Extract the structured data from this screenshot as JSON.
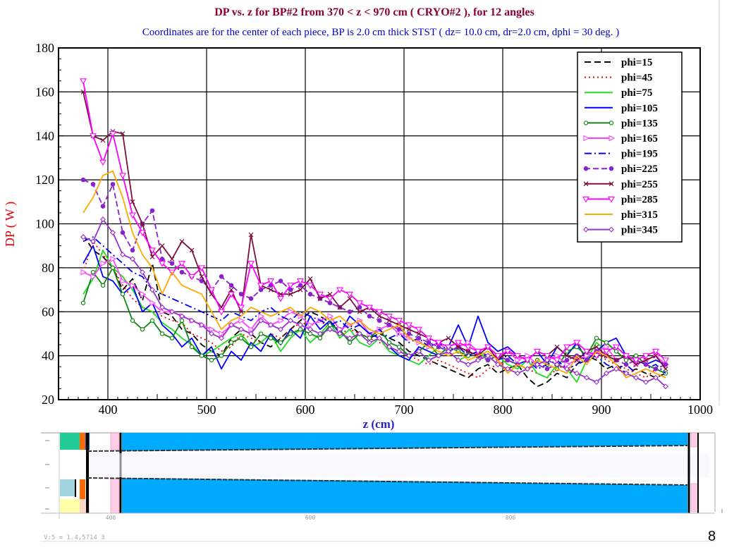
{
  "chart_data": {
    "type": "line",
    "title": "DP vs. z   for  BP#2  from 370 < z < 970 cm ( CRYO#2 ), for 12 angles",
    "subtitle": "Coordinates are for the center of each piece, BP is 2.0 cm thick STST  ( dz= 10.0 cm, dr=2.0 cm, dphi = 30 deg. )",
    "xlabel": "z (cm)",
    "ylabel": "DP ( W )",
    "xlim": [
      350,
      1000
    ],
    "ylim": [
      20,
      180
    ],
    "xticks": [
      "400",
      "500",
      "600",
      "700",
      "800",
      "900",
      "1000"
    ],
    "yticks": [
      "20",
      "40",
      "60",
      "80",
      "100",
      "120",
      "140",
      "160",
      "180"
    ],
    "grid": true,
    "legend_position": "top-right",
    "x": [
      375,
      385,
      395,
      405,
      415,
      425,
      435,
      445,
      455,
      465,
      475,
      485,
      495,
      505,
      515,
      525,
      535,
      545,
      555,
      565,
      575,
      585,
      595,
      605,
      615,
      625,
      635,
      645,
      655,
      665,
      675,
      685,
      695,
      705,
      715,
      725,
      735,
      745,
      755,
      765,
      775,
      785,
      795,
      805,
      815,
      825,
      835,
      845,
      855,
      865,
      875,
      885,
      895,
      905,
      915,
      925,
      935,
      945,
      955,
      965
    ],
    "series": [
      {
        "name": "phi=15",
        "color": "#000000",
        "dash": "9,5",
        "marker": "none",
        "values": [
          95,
          88,
          85,
          80,
          70,
          75,
          65,
          82,
          60,
          58,
          52,
          50,
          45,
          42,
          40,
          48,
          52,
          50,
          46,
          44,
          48,
          52,
          56,
          60,
          58,
          55,
          52,
          54,
          50,
          48,
          50,
          48,
          46,
          42,
          40,
          38,
          36,
          34,
          32,
          30,
          34,
          36,
          32,
          34,
          36,
          30,
          26,
          28,
          32,
          30,
          36,
          40,
          38,
          34,
          36,
          32,
          34,
          32,
          30,
          32
        ]
      },
      {
        "name": "phi=45",
        "color": "#ff0000",
        "dash": "2,4",
        "marker": "none",
        "values": [
          78,
          92,
          86,
          80,
          72,
          66,
          62,
          60,
          58,
          56,
          55,
          50,
          48,
          46,
          42,
          44,
          50,
          48,
          46,
          50,
          48,
          52,
          55,
          54,
          56,
          52,
          50,
          52,
          50,
          48,
          46,
          44,
          42,
          40,
          38,
          36,
          38,
          36,
          34,
          32,
          30,
          34,
          36,
          38,
          36,
          34,
          32,
          30,
          34,
          36,
          38,
          40,
          42,
          38,
          36,
          34,
          32,
          30,
          34,
          36
        ]
      },
      {
        "name": "phi=75",
        "color": "#22dd22",
        "dash": "",
        "marker": "none",
        "values": [
          68,
          75,
          88,
          80,
          76,
          70,
          62,
          60,
          55,
          52,
          48,
          45,
          40,
          42,
          45,
          48,
          50,
          44,
          46,
          50,
          42,
          48,
          52,
          46,
          50,
          55,
          48,
          52,
          46,
          44,
          48,
          42,
          40,
          38,
          36,
          40,
          44,
          42,
          38,
          40,
          42,
          38,
          40,
          36,
          34,
          38,
          32,
          30,
          36,
          34,
          28,
          38,
          46,
          42,
          44,
          40,
          38,
          36,
          34,
          32
        ]
      },
      {
        "name": "phi=105",
        "color": "#0000ff",
        "dash": "",
        "marker": "none",
        "values": [
          82,
          90,
          76,
          74,
          68,
          72,
          60,
          64,
          54,
          50,
          44,
          48,
          40,
          44,
          34,
          42,
          38,
          46,
          42,
          50,
          45,
          52,
          48,
          58,
          52,
          56,
          50,
          58,
          54,
          50,
          48,
          44,
          40,
          38,
          44,
          42,
          40,
          44,
          54,
          44,
          58,
          46,
          42,
          44,
          40,
          38,
          42,
          36,
          44,
          40,
          46,
          38,
          42,
          46,
          48,
          40,
          38,
          36,
          38,
          36
        ]
      },
      {
        "name": "phi=135",
        "color": "#118811",
        "dash": "",
        "marker": "circle-open",
        "values": [
          64,
          78,
          72,
          80,
          68,
          56,
          52,
          56,
          50,
          48,
          56,
          44,
          40,
          38,
          40,
          46,
          48,
          44,
          50,
          48,
          46,
          50,
          52,
          50,
          48,
          54,
          52,
          46,
          50,
          48,
          52,
          46,
          44,
          40,
          42,
          46,
          40,
          44,
          42,
          40,
          42,
          44,
          40,
          38,
          36,
          34,
          38,
          36,
          34,
          42,
          44,
          40,
          48,
          46,
          42,
          38,
          40,
          36,
          34,
          32
        ]
      },
      {
        "name": "phi=165",
        "color": "#ff44ff",
        "dash": "",
        "marker": "triangle-right",
        "values": [
          78,
          76,
          82,
          84,
          74,
          72,
          68,
          64,
          60,
          60,
          58,
          56,
          54,
          52,
          50,
          54,
          56,
          52,
          58,
          54,
          56,
          60,
          58,
          54,
          56,
          58,
          52,
          54,
          56,
          50,
          52,
          54,
          50,
          48,
          46,
          44,
          46,
          42,
          44,
          46,
          42,
          44,
          40,
          42,
          38,
          40,
          36,
          38,
          40,
          36,
          38,
          40,
          42,
          44,
          38,
          40,
          36,
          38,
          40,
          36
        ]
      },
      {
        "name": "phi=195",
        "color": "#0000ee",
        "dash": "10,4,2,4",
        "marker": "none",
        "values": [
          92,
          94,
          90,
          86,
          82,
          78,
          76,
          70,
          68,
          66,
          64,
          62,
          60,
          58,
          56,
          60,
          58,
          56,
          60,
          62,
          58,
          56,
          60,
          58,
          56,
          54,
          56,
          52,
          54,
          50,
          52,
          48,
          50,
          46,
          48,
          44,
          46,
          42,
          44,
          40,
          42,
          40,
          38,
          40,
          36,
          38,
          34,
          36,
          38,
          34,
          36,
          38,
          40,
          36,
          34,
          36,
          32,
          34,
          36,
          32
        ]
      },
      {
        "name": "phi=225",
        "color": "#8822cc",
        "dash": "8,4",
        "marker": "circle-filled",
        "values": [
          120,
          118,
          108,
          118,
          96,
          88,
          100,
          106,
          84,
          82,
          78,
          76,
          74,
          70,
          76,
          72,
          68,
          66,
          70,
          72,
          74,
          70,
          72,
          68,
          66,
          64,
          62,
          60,
          62,
          58,
          56,
          54,
          52,
          50,
          48,
          46,
          44,
          42,
          44,
          42,
          40,
          38,
          40,
          38,
          36,
          38,
          36,
          34,
          36,
          38,
          40,
          38,
          42,
          40,
          38,
          36,
          38,
          36,
          34,
          36
        ]
      },
      {
        "name": "phi=255",
        "color": "#7a1040",
        "dash": "",
        "marker": "x",
        "values": [
          160,
          140,
          138,
          142,
          141,
          110,
          100,
          85,
          90,
          84,
          92,
          88,
          76,
          68,
          62,
          70,
          60,
          95,
          72,
          70,
          68,
          68,
          70,
          75,
          66,
          68,
          62,
          66,
          60,
          62,
          58,
          56,
          54,
          52,
          50,
          48,
          46,
          48,
          44,
          42,
          40,
          44,
          38,
          42,
          40,
          38,
          42,
          40,
          44,
          40,
          38,
          42,
          44,
          40,
          38,
          40,
          36,
          38,
          40,
          34
        ]
      },
      {
        "name": "phi=285",
        "color": "#ff00ff",
        "dash": "",
        "marker": "triangle-down",
        "values": [
          165,
          140,
          128,
          141,
          122,
          104,
          96,
          88,
          82,
          78,
          82,
          76,
          80,
          70,
          60,
          68,
          62,
          82,
          72,
          74,
          66,
          72,
          74,
          72,
          68,
          66,
          70,
          68,
          64,
          62,
          60,
          58,
          56,
          54,
          52,
          48,
          46,
          44,
          46,
          44,
          42,
          44,
          40,
          42,
          40,
          38,
          42,
          40,
          38,
          44,
          46,
          42,
          40,
          42,
          44,
          40,
          38,
          40,
          42,
          38
        ]
      },
      {
        "name": "phi=315",
        "color": "#ffaa00",
        "dash": "",
        "marker": "none",
        "values": [
          105,
          112,
          122,
          124,
          112,
          96,
          86,
          80,
          68,
          78,
          72,
          70,
          68,
          60,
          52,
          56,
          58,
          62,
          60,
          58,
          60,
          62,
          58,
          62,
          60,
          56,
          58,
          54,
          56,
          52,
          50,
          52,
          54,
          48,
          46,
          44,
          42,
          40,
          42,
          38,
          40,
          42,
          38,
          32,
          36,
          34,
          38,
          36,
          34,
          32,
          40,
          36,
          42,
          40,
          36,
          30,
          32,
          34,
          32,
          30
        ]
      },
      {
        "name": "phi=345",
        "color": "#9933cc",
        "dash": "",
        "marker": "diamond-open",
        "values": [
          94,
          92,
          102,
          96,
          86,
          84,
          78,
          70,
          62,
          60,
          58,
          56,
          54,
          50,
          48,
          54,
          52,
          50,
          56,
          54,
          52,
          56,
          54,
          52,
          50,
          52,
          50,
          48,
          50,
          46,
          48,
          44,
          42,
          40,
          42,
          38,
          40,
          42,
          38,
          36,
          38,
          40,
          36,
          34,
          32,
          34,
          36,
          38,
          36,
          34,
          32,
          30,
          28,
          32,
          34,
          32,
          30,
          28,
          30,
          26
        ]
      }
    ]
  },
  "bottom_strip": {
    "scale_labels": [
      "400",
      "600",
      "800"
    ],
    "caption": "V:5 = 1.4,5714 3"
  },
  "slide": {
    "page_number": "8"
  },
  "colors": {
    "title": "#8b0036",
    "subtitle": "#0000cc",
    "ylabel": "#dd0000",
    "xlabel": "#2222cc",
    "strip_blue": "#00aaff",
    "strip_pipe": "#f4f4fc"
  }
}
